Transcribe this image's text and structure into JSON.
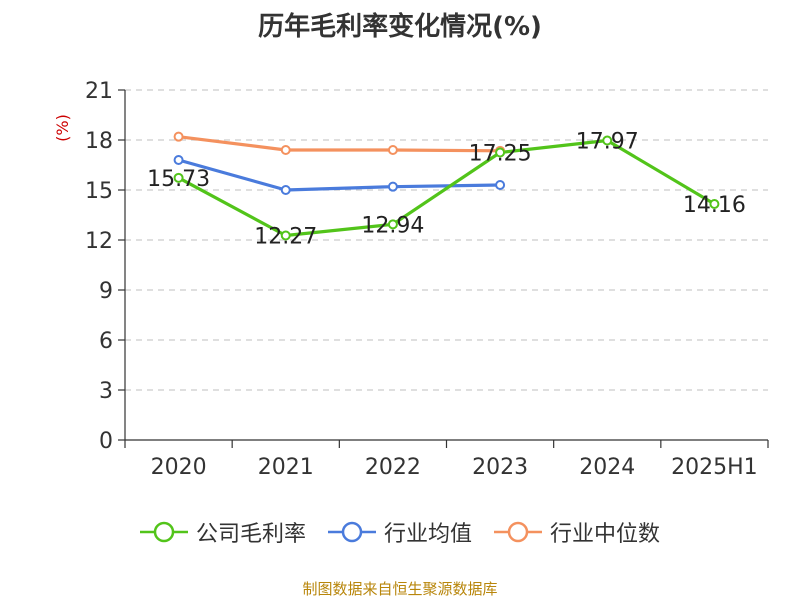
{
  "chart_data": {
    "type": "line",
    "title": "历年毛利率变化情况(%)",
    "ylabel": "(%)",
    "xlabel": "",
    "categories": [
      "2020",
      "2021",
      "2022",
      "2023",
      "2024",
      "2025H1"
    ],
    "ylim": [
      0,
      21
    ],
    "yticks": [
      0,
      3,
      6,
      9,
      12,
      15,
      18,
      21
    ],
    "grid": "horizontal-dashed",
    "legend_position": "bottom",
    "series": [
      {
        "name": "公司毛利率",
        "color": "#52c41a",
        "values": [
          15.73,
          12.27,
          12.94,
          17.25,
          17.97,
          14.16
        ],
        "labels": [
          "15.73",
          "12.27",
          "12.94",
          "17.25",
          "17.97",
          "14.16"
        ]
      },
      {
        "name": "行业均值",
        "color": "#4a7bdc",
        "values": [
          16.8,
          15.0,
          15.2,
          15.3,
          null,
          null
        ]
      },
      {
        "name": "行业中位数",
        "color": "#f4915e",
        "values": [
          18.2,
          17.4,
          17.4,
          17.35,
          null,
          null
        ]
      }
    ]
  },
  "source_note": "制图数据来自恒生聚源数据库"
}
